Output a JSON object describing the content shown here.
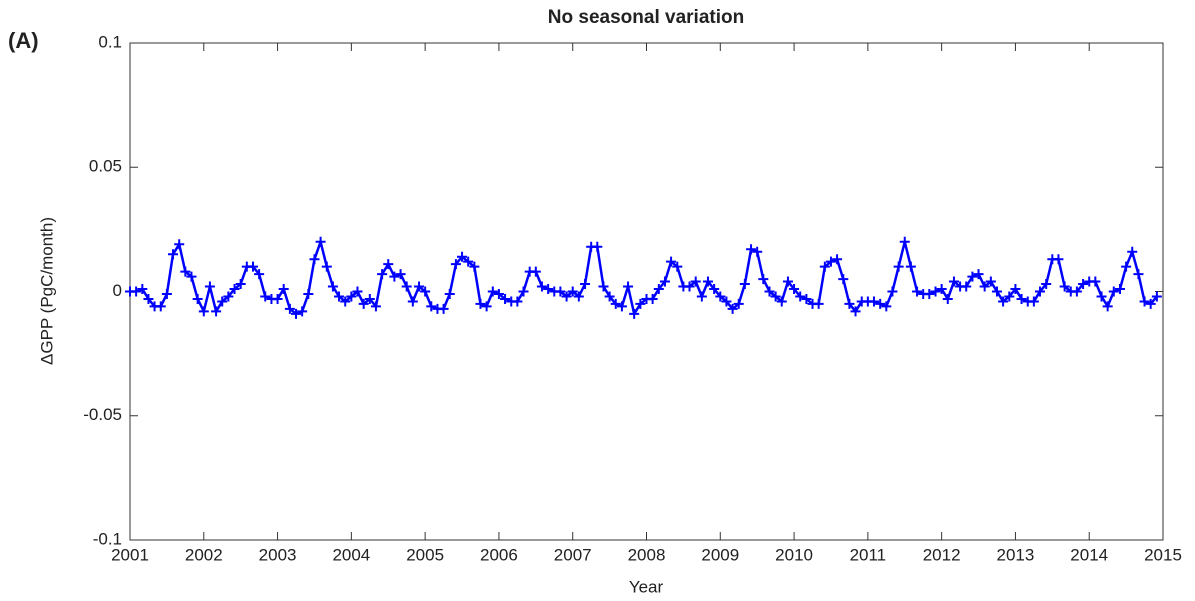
{
  "chart_data": {
    "type": "line",
    "title": "No seasonal variation",
    "panel_label": "(A)",
    "x_label": "Year",
    "y_label": "ΔGPP (PgC/month)",
    "xlim": [
      2001,
      2015
    ],
    "xticks": [
      2001,
      2002,
      2003,
      2004,
      2005,
      2006,
      2007,
      2008,
      2009,
      2010,
      2011,
      2012,
      2013,
      2014,
      2015
    ],
    "ylim": [
      -0.1,
      0.1
    ],
    "yticks": [
      -0.1,
      -0.05,
      0,
      0.05,
      0.1
    ],
    "marker": "+",
    "x": [
      2001,
      2001.083,
      2001.167,
      2001.25,
      2001.333,
      2001.417,
      2001.5,
      2001.583,
      2001.667,
      2001.75,
      2001.833,
      2001.917,
      2002,
      2002.083,
      2002.167,
      2002.25,
      2002.333,
      2002.417,
      2002.5,
      2002.583,
      2002.667,
      2002.75,
      2002.833,
      2002.917,
      2003,
      2003.083,
      2003.167,
      2003.25,
      2003.333,
      2003.417,
      2003.5,
      2003.583,
      2003.667,
      2003.75,
      2003.833,
      2003.917,
      2004,
      2004.083,
      2004.167,
      2004.25,
      2004.333,
      2004.417,
      2004.5,
      2004.583,
      2004.667,
      2004.75,
      2004.833,
      2004.917,
      2005,
      2005.083,
      2005.167,
      2005.25,
      2005.333,
      2005.417,
      2005.5,
      2005.583,
      2005.667,
      2005.75,
      2005.833,
      2005.917,
      2006,
      2006.083,
      2006.167,
      2006.25,
      2006.333,
      2006.417,
      2006.5,
      2006.583,
      2006.667,
      2006.75,
      2006.833,
      2006.917,
      2007,
      2007.083,
      2007.167,
      2007.25,
      2007.333,
      2007.417,
      2007.5,
      2007.583,
      2007.667,
      2007.75,
      2007.833,
      2007.917,
      2008,
      2008.083,
      2008.167,
      2008.25,
      2008.333,
      2008.417,
      2008.5,
      2008.583,
      2008.667,
      2008.75,
      2008.833,
      2008.917,
      2009,
      2009.083,
      2009.167,
      2009.25,
      2009.333,
      2009.417,
      2009.5,
      2009.583,
      2009.667,
      2009.75,
      2009.833,
      2009.917,
      2010,
      2010.083,
      2010.167,
      2010.25,
      2010.333,
      2010.417,
      2010.5,
      2010.583,
      2010.667,
      2010.75,
      2010.833,
      2010.917,
      2011,
      2011.083,
      2011.167,
      2011.25,
      2011.333,
      2011.417,
      2011.5,
      2011.583,
      2011.667,
      2011.75,
      2011.833,
      2011.917,
      2012,
      2012.083,
      2012.167,
      2012.25,
      2012.333,
      2012.417,
      2012.5,
      2012.583,
      2012.667,
      2012.75,
      2012.833,
      2012.917,
      2013,
      2013.083,
      2013.167,
      2013.25,
      2013.333,
      2013.417,
      2013.5,
      2013.583,
      2013.667,
      2013.75,
      2013.833,
      2013.917,
      2014,
      2014.083,
      2014.167,
      2014.25,
      2014.333,
      2014.417,
      2014.5,
      2014.583,
      2014.667,
      2014.75,
      2014.833,
      2014.917
    ],
    "series": [
      {
        "color": "#0000ff",
        "values": [
          0,
          0,
          0.001,
          -0.003,
          -0.006,
          -0.006,
          -0.001,
          0.015,
          0.019,
          0.008,
          0.006,
          -0.003,
          -0.008,
          0.002,
          -0.008,
          -0.004,
          -0.002,
          0.001,
          0.003,
          0.01,
          0.01,
          0.007,
          -0.002,
          -0.003,
          -0.003,
          0.001,
          -0.007,
          -0.009,
          -0.008,
          -0.001,
          0.013,
          0.02,
          0.01,
          0.002,
          -0.002,
          -0.004,
          -0.002,
          0,
          -0.005,
          -0.003,
          -0.006,
          0.007,
          0.011,
          0.006,
          0.007,
          0.002,
          -0.004,
          0.002,
          0,
          -0.006,
          -0.007,
          -0.007,
          -0.001,
          0.011,
          0.014,
          0.012,
          0.01,
          -0.005,
          -0.006,
          0,
          -0.001,
          -0.003,
          -0.004,
          -0.004,
          0,
          0.008,
          0.008,
          0.002,
          0.001,
          0,
          0,
          -0.002,
          0,
          -0.002,
          0.003,
          0.018,
          0.018,
          0.002,
          -0.002,
          -0.005,
          -0.006,
          0.002,
          -0.009,
          -0.005,
          -0.003,
          -0.003,
          0.001,
          0.004,
          0.012,
          0.01,
          0.002,
          0.002,
          0.004,
          -0.002,
          0.004,
          0.001,
          -0.002,
          -0.004,
          -0.007,
          -0.005,
          0.003,
          0.017,
          0.016,
          0.005,
          0,
          -0.002,
          -0.004,
          0.004,
          0.001,
          -0.002,
          -0.003,
          -0.005,
          -0.005,
          0.01,
          0.012,
          0.013,
          0.005,
          -0.005,
          -0.008,
          -0.004,
          -0.004,
          -0.004,
          -0.005,
          -0.006,
          0,
          0.01,
          0.02,
          0.01,
          0,
          -0.001,
          -0.001,
          0,
          0.001,
          -0.003,
          0.004,
          0.002,
          0.002,
          0.006,
          0.007,
          0.002,
          0.004,
          0,
          -0.004,
          -0.002,
          0.001,
          -0.003,
          -0.004,
          -0.004,
          0,
          0.003,
          0.013,
          0.013,
          0.002,
          0,
          0,
          0.003,
          0.004,
          0.004,
          -0.002,
          -0.006,
          0,
          0.001,
          0.01,
          0.016,
          0.007,
          -0.004,
          -0.005,
          -0.002
        ]
      }
    ]
  }
}
